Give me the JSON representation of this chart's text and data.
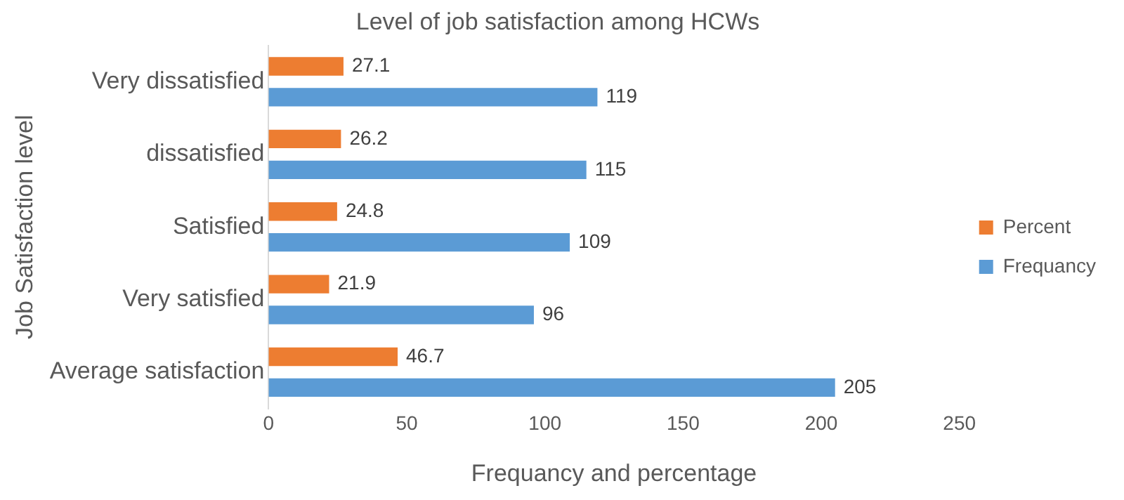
{
  "chart_data": {
    "type": "bar",
    "orientation": "horizontal",
    "title": "Level of job satisfaction among HCWs",
    "xlabel": "Frequancy and percentage",
    "ylabel": "Job Satisfaction level",
    "categories": [
      "Very dissatisfied",
      "dissatisfied",
      "Satisfied",
      "Very satisfied",
      "Average satisfaction"
    ],
    "series": [
      {
        "name": "Percent",
        "color": "#ed7d31",
        "values": [
          27.1,
          26.2,
          24.8,
          21.9,
          46.7
        ]
      },
      {
        "name": "Frequancy",
        "color": "#5b9bd5",
        "values": [
          119,
          115,
          109,
          96,
          205
        ]
      }
    ],
    "xlim": [
      0,
      250
    ],
    "xticks": [
      0,
      50,
      100,
      150,
      200,
      250
    ],
    "grid": false,
    "legend": "right",
    "data_labels": true
  }
}
